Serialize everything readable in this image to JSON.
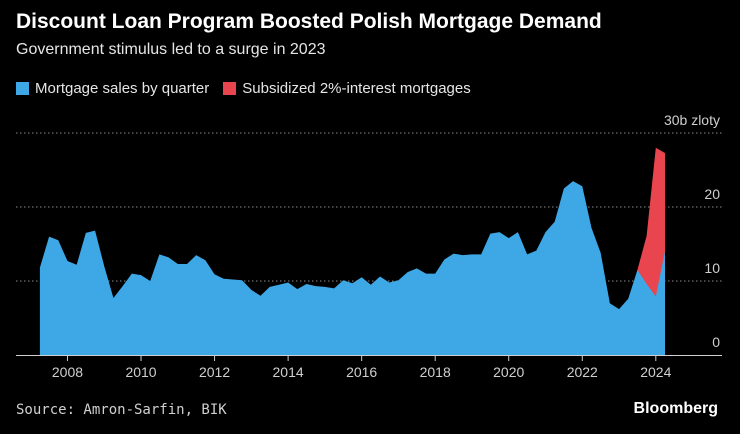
{
  "header": {
    "title": "Discount Loan Program Boosted Polish Mortgage Demand",
    "subtitle": "Government stimulus led to a surge in 2023"
  },
  "footer": {
    "source": "Source: Amron-Sarfin, BIK",
    "brand": "Bloomberg"
  },
  "colors": {
    "background": "#000000",
    "mortgage": "#3ea7e6",
    "subsidized": "#e8454f",
    "grid": "#8a8a8a"
  },
  "chart_data": {
    "type": "area",
    "title": "Discount Loan Program Boosted Polish Mortgage Demand",
    "subtitle": "Government stimulus led to a surge in 2023",
    "unit_label": "30b zloty",
    "xlabel": "",
    "ylabel": "",
    "xlim": [
      2006.6,
      2025.8
    ],
    "ylim": [
      0,
      30
    ],
    "yticks": [
      0,
      10,
      20,
      30
    ],
    "ytick_labels": [
      "0",
      "10",
      "20",
      "30b zloty"
    ],
    "xticks": [
      2008,
      2010,
      2012,
      2014,
      2016,
      2018,
      2020,
      2022,
      2024
    ],
    "xtick_labels": [
      "2008",
      "2010",
      "2012",
      "2014",
      "2016",
      "2018",
      "2020",
      "2022",
      "2024"
    ],
    "grid": true,
    "legend": [
      {
        "name": "Mortgage sales by quarter",
        "color": "#3ea7e6"
      },
      {
        "name": "Subsidized 2%-interest mortgages",
        "color": "#e8454f"
      }
    ],
    "series": [
      {
        "name": "Mortgage sales by quarter",
        "x": [
          2007.25,
          2007.5,
          2007.75,
          2008.0,
          2008.25,
          2008.5,
          2008.75,
          2009.0,
          2009.25,
          2009.5,
          2009.75,
          2010.0,
          2010.25,
          2010.5,
          2010.75,
          2011.0,
          2011.25,
          2011.5,
          2011.75,
          2012.0,
          2012.25,
          2012.5,
          2012.75,
          2013.0,
          2013.25,
          2013.5,
          2013.75,
          2014.0,
          2014.25,
          2014.5,
          2014.75,
          2015.0,
          2015.25,
          2015.5,
          2015.75,
          2016.0,
          2016.25,
          2016.5,
          2016.75,
          2017.0,
          2017.25,
          2017.5,
          2017.75,
          2018.0,
          2018.25,
          2018.5,
          2018.75,
          2019.0,
          2019.25,
          2019.5,
          2019.75,
          2020.0,
          2020.25,
          2020.5,
          2020.75,
          2021.0,
          2021.25,
          2021.5,
          2021.75,
          2022.0,
          2022.25,
          2022.5,
          2022.75,
          2023.0,
          2023.25,
          2023.5,
          2023.75,
          2024.0,
          2024.25
        ],
        "values": [
          11.8,
          16.0,
          15.5,
          12.7,
          12.2,
          16.5,
          16.8,
          12.0,
          7.7,
          9.3,
          11.0,
          10.8,
          10.0,
          13.6,
          13.2,
          12.3,
          12.3,
          13.5,
          12.8,
          10.9,
          10.3,
          10.2,
          10.1,
          8.8,
          8.0,
          9.2,
          9.5,
          9.8,
          8.9,
          9.6,
          9.3,
          9.2,
          9.0,
          10.1,
          9.7,
          10.5,
          9.5,
          10.6,
          9.8,
          10.1,
          11.2,
          11.7,
          11.0,
          11.0,
          12.9,
          13.7,
          13.5,
          13.6,
          13.6,
          16.4,
          16.6,
          15.8,
          16.6,
          13.6,
          14.1,
          16.6,
          18.0,
          22.5,
          23.5,
          22.8,
          17.2,
          13.8,
          7.0,
          6.2,
          7.6,
          11.5,
          9.6,
          7.9,
          14.0
        ]
      },
      {
        "name": "Subsidized 2%-interest mortgages",
        "x": [
          2023.5,
          2023.75,
          2024.0,
          2024.25
        ],
        "values": [
          11.5,
          16.1,
          28.0,
          27.3
        ]
      }
    ]
  }
}
